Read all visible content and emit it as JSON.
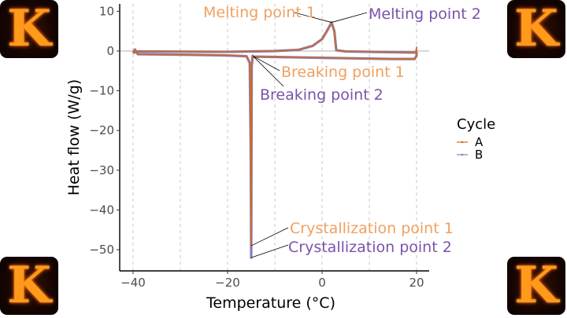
{
  "logos": [
    {
      "text": "K"
    },
    {
      "text": "K"
    },
    {
      "text": "K"
    },
    {
      "text": "K"
    }
  ],
  "chart_data": {
    "type": "line",
    "xlabel": "Temperature (°C)",
    "ylabel": "Heat flow (W/g)",
    "xlim": [
      -42.5,
      23
    ],
    "ylim": [
      -55.5,
      11.8
    ],
    "xticks": [
      -40,
      -20,
      0,
      20
    ],
    "xtick_labels": [
      "−40",
      "−20",
      "0",
      "20"
    ],
    "yticks": [
      10,
      0,
      -10,
      -20,
      -30,
      -40,
      -50
    ],
    "ytick_labels": [
      "10",
      "0",
      "−10",
      "−20",
      "−30",
      "−40",
      "−50"
    ],
    "grid": {
      "vertical_dashed": [
        -40,
        -30,
        -20,
        -10,
        0,
        10,
        20
      ],
      "zero_hline": true
    },
    "legend": {
      "title": "Cycle",
      "placement": "right",
      "entries": [
        "A",
        "B"
      ]
    },
    "colors": {
      "A": "#d2691e",
      "B": "#8480c0",
      "label_A": "#f0a060",
      "label_B": "#7a52ab"
    },
    "series": [
      {
        "name": "B",
        "points": [
          [
            -40,
            -0.5
          ],
          [
            -39.6,
            0.4
          ],
          [
            -39,
            -0.8
          ],
          [
            -30,
            -0.9
          ],
          [
            -20,
            -1.1
          ],
          [
            -16,
            -1.3
          ],
          [
            -15.3,
            -3
          ],
          [
            -15.1,
            -25
          ],
          [
            -15,
            -52
          ],
          [
            -14.9,
            -4
          ],
          [
            -14.7,
            -1.2
          ],
          [
            -14.5,
            -1.4
          ],
          [
            0,
            -1.7
          ],
          [
            15,
            -2
          ],
          [
            19.6,
            -2
          ],
          [
            20,
            -1.2
          ],
          [
            20,
            -0.4
          ],
          [
            15,
            -0.3
          ],
          [
            5,
            -0.1
          ],
          [
            3,
            0.2
          ],
          [
            2.6,
            5
          ],
          [
            2,
            7.2
          ],
          [
            1,
            5
          ],
          [
            0,
            3
          ],
          [
            -2,
            1.3
          ],
          [
            -5,
            0.3
          ],
          [
            -10,
            0
          ],
          [
            -20,
            -0.2
          ],
          [
            -39,
            -0.1
          ],
          [
            -40,
            -0.5
          ]
        ]
      },
      {
        "name": "A",
        "points": [
          [
            -40,
            -0.5
          ],
          [
            -39.6,
            0.4
          ],
          [
            -39,
            -0.8
          ],
          [
            -30,
            -0.9
          ],
          [
            -20,
            -1.1
          ],
          [
            -16,
            -1.3
          ],
          [
            -15.3,
            -3
          ],
          [
            -15.1,
            -25
          ],
          [
            -15,
            -49
          ],
          [
            -14.9,
            -4
          ],
          [
            -14.7,
            -1.2
          ],
          [
            -14.5,
            -1.4
          ],
          [
            0,
            -1.7
          ],
          [
            15,
            -2
          ],
          [
            19.6,
            -2
          ],
          [
            20,
            -1.2
          ],
          [
            20,
            1
          ],
          [
            19.8,
            -0.3
          ],
          [
            15,
            -0.3
          ],
          [
            5,
            -0.1
          ],
          [
            3,
            0.2
          ],
          [
            2.6,
            5
          ],
          [
            2.1,
            7
          ],
          [
            1,
            5
          ],
          [
            0,
            3
          ],
          [
            -2,
            1.3
          ],
          [
            -5,
            0.3
          ],
          [
            -10,
            0
          ],
          [
            -20,
            -0.2
          ],
          [
            -39,
            -0.1
          ],
          [
            -40,
            -0.5
          ]
        ]
      }
    ],
    "annotations": [
      {
        "text": "Melting point 1",
        "series": "A",
        "at": [
          2,
          7.2
        ]
      },
      {
        "text": "Melting point 2",
        "series": "B",
        "at": [
          2,
          7.2
        ]
      },
      {
        "text": "Breaking point 1",
        "series": "A",
        "at": [
          -14.6,
          -1.3
        ]
      },
      {
        "text": "Breaking point 2",
        "series": "B",
        "at": [
          -14.6,
          -1.3
        ]
      },
      {
        "text": "Crystallization point 1",
        "series": "A",
        "at": [
          -15,
          -49
        ]
      },
      {
        "text": "Crystallization point 2",
        "series": "B",
        "at": [
          -15,
          -52
        ]
      }
    ]
  }
}
